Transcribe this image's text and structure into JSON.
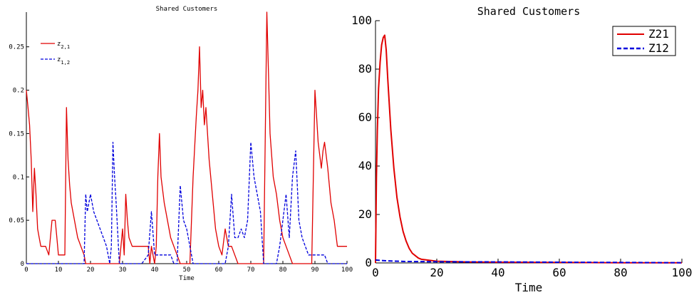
{
  "chart_data": [
    {
      "type": "line",
      "title": "Shared Customers",
      "xlabel": "Time",
      "ylabel": "",
      "xlim": [
        0,
        100
      ],
      "ylim": [
        0,
        0.29
      ],
      "x_ticks": [
        "0",
        "10",
        "20",
        "30",
        "40",
        "50",
        "60",
        "70",
        "80",
        "90",
        "100"
      ],
      "y_ticks": [
        "0",
        "0.05",
        "0.1",
        "0.15",
        "0.2",
        "0.25"
      ],
      "legend": {
        "position": "top-left"
      },
      "series": [
        {
          "name": "z_{2,1}",
          "legend_main": "z",
          "legend_sub": "2,1",
          "color": "#e00000",
          "style": "solid",
          "points": [
            [
              0,
              0.2
            ],
            [
              0.5,
              0.18
            ],
            [
              1,
              0.16
            ],
            [
              1.5,
              0.12
            ],
            [
              2,
              0.06
            ],
            [
              2.5,
              0.11
            ],
            [
              3,
              0.08
            ],
            [
              3.5,
              0.04
            ],
            [
              4,
              0.03
            ],
            [
              4.5,
              0.02
            ],
            [
              5,
              0.02
            ],
            [
              6,
              0.02
            ],
            [
              7,
              0.01
            ],
            [
              8,
              0.05
            ],
            [
              9,
              0.05
            ],
            [
              9.5,
              0.03
            ],
            [
              10,
              0.01
            ],
            [
              11,
              0.01
            ],
            [
              12,
              0.01
            ],
            [
              12.5,
              0.18
            ],
            [
              13,
              0.12
            ],
            [
              13.5,
              0.09
            ],
            [
              14,
              0.07
            ],
            [
              15,
              0.05
            ],
            [
              16,
              0.03
            ],
            [
              17,
              0.02
            ],
            [
              18,
              0.01
            ],
            [
              18.5,
              0
            ],
            [
              29,
              0
            ],
            [
              30,
              0.04
            ],
            [
              30.5,
              0.01
            ],
            [
              31,
              0.08
            ],
            [
              31.5,
              0.05
            ],
            [
              32,
              0.03
            ],
            [
              33,
              0.02
            ],
            [
              35,
              0.02
            ],
            [
              37,
              0.02
            ],
            [
              38,
              0.02
            ],
            [
              38.5,
              0
            ],
            [
              39,
              0.02
            ],
            [
              40,
              0
            ],
            [
              40.5,
              0.02
            ],
            [
              41,
              0.1
            ],
            [
              41.5,
              0.15
            ],
            [
              42,
              0.1
            ],
            [
              43,
              0.07
            ],
            [
              44,
              0.05
            ],
            [
              45,
              0.03
            ],
            [
              46,
              0.02
            ],
            [
              47,
              0.01
            ],
            [
              48,
              0
            ],
            [
              51,
              0
            ],
            [
              52,
              0.1
            ],
            [
              53,
              0.17
            ],
            [
              53.5,
              0.2
            ],
            [
              54,
              0.25
            ],
            [
              54.5,
              0.18
            ],
            [
              55,
              0.2
            ],
            [
              55.5,
              0.16
            ],
            [
              56,
              0.18
            ],
            [
              57,
              0.12
            ],
            [
              58,
              0.08
            ],
            [
              59,
              0.04
            ],
            [
              60,
              0.02
            ],
            [
              61,
              0.01
            ],
            [
              62,
              0.04
            ],
            [
              63,
              0.02
            ],
            [
              64,
              0.02
            ],
            [
              65,
              0.01
            ],
            [
              66,
              0
            ],
            [
              74,
              0
            ],
            [
              75,
              0.29
            ],
            [
              75.5,
              0.22
            ],
            [
              76,
              0.15
            ],
            [
              77,
              0.1
            ],
            [
              78,
              0.08
            ],
            [
              79,
              0.05
            ],
            [
              80,
              0.03
            ],
            [
              81,
              0.02
            ],
            [
              82,
              0.01
            ],
            [
              83,
              0
            ],
            [
              89,
              0
            ],
            [
              90,
              0.2
            ],
            [
              90.5,
              0.17
            ],
            [
              91,
              0.14
            ],
            [
              92,
              0.11
            ],
            [
              92.5,
              0.13
            ],
            [
              93,
              0.14
            ],
            [
              94,
              0.11
            ],
            [
              95,
              0.07
            ],
            [
              96,
              0.05
            ],
            [
              97,
              0.02
            ],
            [
              98,
              0.02
            ],
            [
              99,
              0.02
            ],
            [
              100,
              0.02
            ]
          ]
        },
        {
          "name": "z_{1,2}",
          "legend_main": "z",
          "legend_sub": "1,2",
          "color": "#0000dd",
          "style": "dashed",
          "points": [
            [
              0,
              0
            ],
            [
              18,
              0
            ],
            [
              18.5,
              0.08
            ],
            [
              19,
              0.06
            ],
            [
              20,
              0.08
            ],
            [
              21,
              0.06
            ],
            [
              22,
              0.05
            ],
            [
              23,
              0.04
            ],
            [
              24,
              0.03
            ],
            [
              25,
              0.02
            ],
            [
              26,
              0
            ],
            [
              26.5,
              0.02
            ],
            [
              27,
              0.14
            ],
            [
              27.5,
              0.1
            ],
            [
              28,
              0.07
            ],
            [
              29,
              0
            ],
            [
              35,
              0
            ],
            [
              36,
              0
            ],
            [
              38,
              0.01
            ],
            [
              39,
              0.06
            ],
            [
              40,
              0.01
            ],
            [
              41,
              0.01
            ],
            [
              43,
              0.01
            ],
            [
              45,
              0.01
            ],
            [
              46,
              0
            ],
            [
              47,
              0
            ],
            [
              48,
              0.09
            ],
            [
              49,
              0.05
            ],
            [
              50,
              0.04
            ],
            [
              51,
              0.02
            ],
            [
              52,
              0
            ],
            [
              62,
              0
            ],
            [
              63,
              0.02
            ],
            [
              64,
              0.08
            ],
            [
              65,
              0.03
            ],
            [
              66,
              0.03
            ],
            [
              67,
              0.04
            ],
            [
              68,
              0.03
            ],
            [
              69,
              0.05
            ],
            [
              70,
              0.14
            ],
            [
              71,
              0.1
            ],
            [
              72,
              0.08
            ],
            [
              73,
              0.06
            ],
            [
              74,
              0
            ],
            [
              78,
              0
            ],
            [
              79,
              0.02
            ],
            [
              80,
              0.05
            ],
            [
              81,
              0.08
            ],
            [
              82,
              0.03
            ],
            [
              83,
              0.1
            ],
            [
              84,
              0.13
            ],
            [
              85,
              0.05
            ],
            [
              86,
              0.03
            ],
            [
              87,
              0.02
            ],
            [
              88,
              0.01
            ],
            [
              90,
              0.01
            ],
            [
              91,
              0.01
            ],
            [
              92,
              0.01
            ],
            [
              93,
              0.01
            ],
            [
              94,
              0
            ],
            [
              100,
              0
            ]
          ]
        }
      ]
    },
    {
      "type": "line",
      "title": "Shared Customers",
      "xlabel": "Time",
      "ylabel": "",
      "xlim": [
        0,
        100
      ],
      "ylim": [
        0,
        100
      ],
      "x_ticks": [
        "0",
        "20",
        "40",
        "60",
        "80",
        "100"
      ],
      "y_ticks": [
        "0",
        "20",
        "40",
        "60",
        "80",
        "100"
      ],
      "legend": {
        "position": "top-right"
      },
      "series": [
        {
          "name": "Z21",
          "color": "#e00000",
          "style": "solid",
          "points": [
            [
              0,
              0
            ],
            [
              0.3,
              35
            ],
            [
              0.6,
              55
            ],
            [
              1,
              72
            ],
            [
              1.5,
              83
            ],
            [
              2,
              90
            ],
            [
              2.5,
              93
            ],
            [
              3,
              94
            ],
            [
              3.5,
              88
            ],
            [
              4,
              76
            ],
            [
              5,
              55
            ],
            [
              6,
              39
            ],
            [
              7,
              27
            ],
            [
              8,
              19
            ],
            [
              9,
              13
            ],
            [
              10,
              9
            ],
            [
              11,
              6
            ],
            [
              12,
              4
            ],
            [
              13,
              3
            ],
            [
              14,
              2
            ],
            [
              15,
              1.5
            ],
            [
              20,
              0.7
            ],
            [
              30,
              0.4
            ],
            [
              40,
              0.3
            ],
            [
              60,
              0.2
            ],
            [
              80,
              0.1
            ],
            [
              100,
              0.05
            ]
          ]
        },
        {
          "name": "Z12",
          "color": "#0000dd",
          "style": "dashed",
          "points": [
            [
              0,
              1.2
            ],
            [
              2,
              1.0
            ],
            [
              5,
              0.8
            ],
            [
              10,
              0.6
            ],
            [
              20,
              0.5
            ],
            [
              40,
              0.4
            ],
            [
              60,
              0.3
            ],
            [
              80,
              0.2
            ],
            [
              100,
              0.1
            ]
          ]
        }
      ]
    }
  ]
}
